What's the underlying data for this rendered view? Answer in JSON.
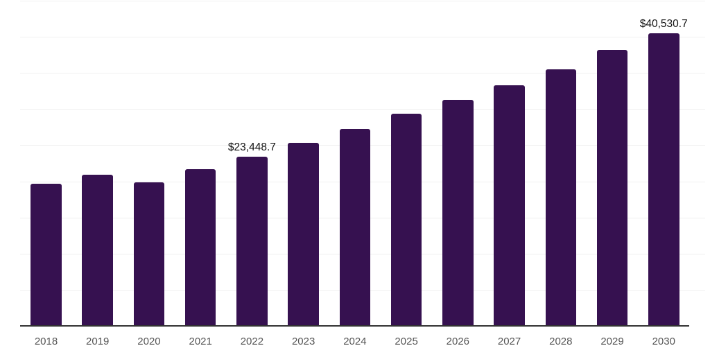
{
  "chart_data": {
    "type": "bar",
    "title": "",
    "xlabel": "",
    "ylabel": "",
    "categories": [
      "2018",
      "2019",
      "2020",
      "2021",
      "2022",
      "2023",
      "2024",
      "2025",
      "2026",
      "2027",
      "2028",
      "2029",
      "2030"
    ],
    "values": [
      19700,
      20900,
      19900,
      21700,
      23448.7,
      25300,
      27230,
      29380,
      31300,
      33250,
      35500,
      38150,
      40530.7
    ],
    "data_labels": {
      "2022": "$23,448.7",
      "2030": "$40,530.7"
    },
    "ylim": [
      0,
      45000
    ],
    "gridline_step": 5000,
    "grid": "horizontal",
    "legend_position": "none",
    "y_axis_tick_labels_visible": false,
    "colors": {
      "bar": "#361150",
      "axis_line": "#333333",
      "gridline": "#f0f0f0",
      "value_label": "#111111",
      "tick_label": "#555555",
      "background": "#ffffff"
    }
  }
}
